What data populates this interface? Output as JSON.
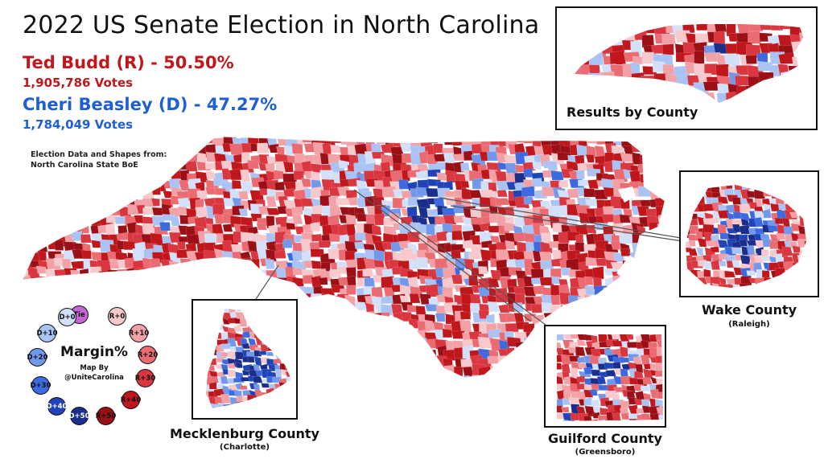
{
  "title": "2022 US Senate Election in North Carolina",
  "candidates": {
    "rep": {
      "name_line": "Ted Budd (R) - 50.50%",
      "votes_line": "1,905,786 Votes",
      "color": "#c0171d"
    },
    "dem": {
      "name_line": "Cheri Beasley (D) - 47.27%",
      "votes_line": "1,784,049 Votes",
      "color": "#1f5fd6"
    }
  },
  "source": {
    "line1": "Election Data and Shapes from:",
    "line2": "North Carolina State BoE"
  },
  "insets": {
    "county": {
      "label": "Results by County"
    },
    "wake": {
      "label": "Wake County",
      "sub": "(Raleigh)"
    },
    "mecklenburg": {
      "label": "Mecklenburg County",
      "sub": "(Charlotte)"
    },
    "guilford": {
      "label": "Guilford County",
      "sub": "(Greensboro)"
    }
  },
  "legend": {
    "title": "Margin%",
    "credit_line1": "Map By",
    "credit_line2": "@UniteCarolina",
    "items": [
      {
        "label": "Tie",
        "color": "#c565d6",
        "text_color": "#111"
      },
      {
        "label": "R+0",
        "color": "#f7c9cc",
        "text_color": "#111"
      },
      {
        "label": "R+10",
        "color": "#f2a1a6",
        "text_color": "#111"
      },
      {
        "label": "R+20",
        "color": "#ea6b72",
        "text_color": "#111"
      },
      {
        "label": "R+30",
        "color": "#d9363f",
        "text_color": "#111"
      },
      {
        "label": "R+40",
        "color": "#c0171d",
        "text_color": "#111"
      },
      {
        "label": "R+50",
        "color": "#9b1016",
        "text_color": "#111"
      },
      {
        "label": "D+50",
        "color": "#1c2e8c",
        "text_color": "#ffffff"
      },
      {
        "label": "D+40",
        "color": "#2143b8",
        "text_color": "#ffffff"
      },
      {
        "label": "D+30",
        "color": "#3d6ae0",
        "text_color": "#111"
      },
      {
        "label": "D+20",
        "color": "#7298ec",
        "text_color": "#111"
      },
      {
        "label": "D+10",
        "color": "#a9c3f4",
        "text_color": "#111"
      },
      {
        "label": "D+0",
        "color": "#d3e0fa",
        "text_color": "#111"
      }
    ]
  }
}
